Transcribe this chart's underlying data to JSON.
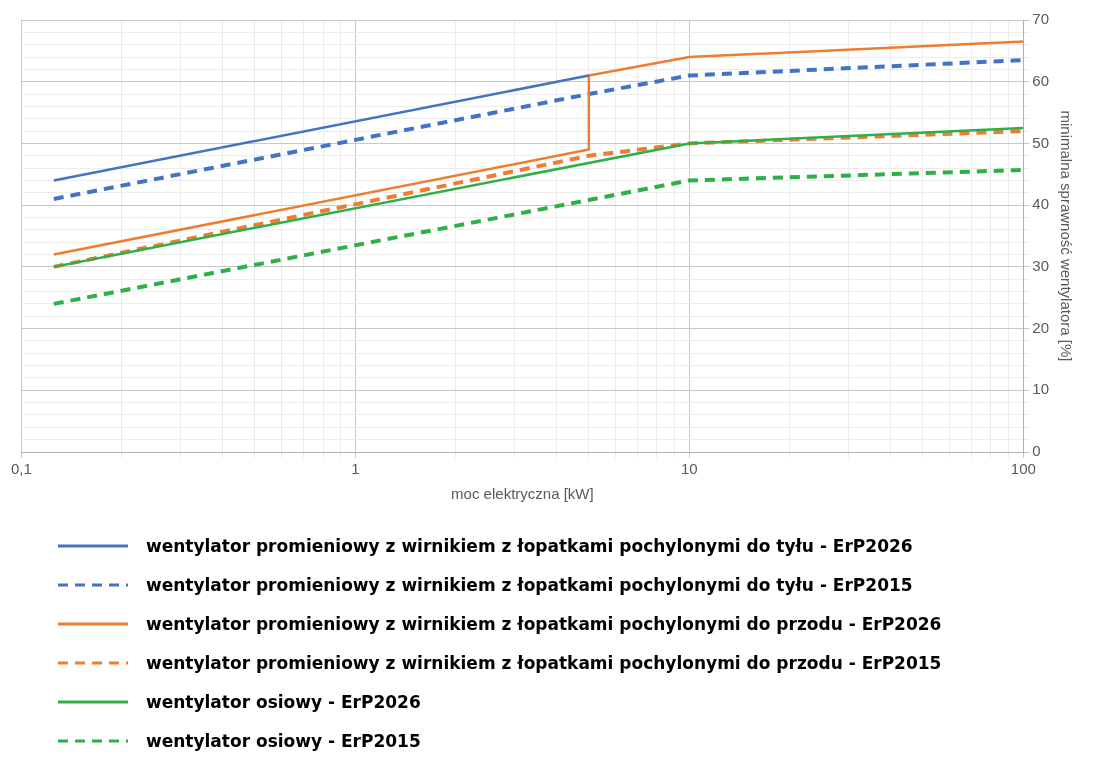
{
  "chart_data": {
    "type": "line",
    "xlabel": "moc elektryczna [kW]",
    "ylabel": "minimalna sprawność wentylatora [%]",
    "log": "x",
    "grid": true,
    "legend": "bottom",
    "marker": "none",
    "xlim": [
      0.1,
      100
    ],
    "ylim": [
      0,
      70
    ],
    "xticks": [
      {
        "value": 0.1,
        "label": "0,1"
      },
      {
        "value": 0.2,
        "label": null
      },
      {
        "value": 0.3,
        "label": null
      },
      {
        "value": 0.4,
        "label": null
      },
      {
        "value": 0.5,
        "label": null
      },
      {
        "value": 0.6,
        "label": null
      },
      {
        "value": 0.7,
        "label": null
      },
      {
        "value": 0.8,
        "label": null
      },
      {
        "value": 0.9,
        "label": null
      },
      1,
      {
        "value": 2,
        "label": null
      },
      {
        "value": 3,
        "label": null
      },
      {
        "value": 4,
        "label": null
      },
      {
        "value": 5,
        "label": null
      },
      {
        "value": 6,
        "label": null
      },
      {
        "value": 7,
        "label": null
      },
      {
        "value": 8,
        "label": null
      },
      {
        "value": 9,
        "label": null
      },
      10,
      {
        "value": 20,
        "label": null
      },
      {
        "value": 30,
        "label": null
      },
      {
        "value": 40,
        "label": null
      },
      {
        "value": 50,
        "label": null
      },
      {
        "value": 60,
        "label": null
      },
      {
        "value": 70,
        "label": null
      },
      {
        "value": 80,
        "label": null
      },
      {
        "value": 90,
        "label": null
      },
      100
    ],
    "yticks": [
      0,
      {
        "value": 2,
        "label": null
      },
      {
        "value": 4,
        "label": null
      },
      {
        "value": 6,
        "label": null
      },
      {
        "value": 8,
        "label": null
      },
      10,
      {
        "value": 12,
        "label": null
      },
      {
        "value": 14,
        "label": null
      },
      {
        "value": 16,
        "label": null
      },
      {
        "value": 18,
        "label": null
      },
      20,
      {
        "value": 22,
        "label": null
      },
      {
        "value": 24,
        "label": null
      },
      {
        "value": 26,
        "label": null
      },
      {
        "value": 28,
        "label": null
      },
      30,
      {
        "value": 32,
        "label": null
      },
      {
        "value": 34,
        "label": null
      },
      {
        "value": 36,
        "label": null
      },
      {
        "value": 38,
        "label": null
      },
      40,
      {
        "value": 42,
        "label": null
      },
      {
        "value": 44,
        "label": null
      },
      {
        "value": 46,
        "label": null
      },
      {
        "value": 48,
        "label": null
      },
      50,
      {
        "value": 52,
        "label": null
      },
      {
        "value": 54,
        "label": null
      },
      {
        "value": 56,
        "label": null
      },
      {
        "value": 58,
        "label": null
      },
      60,
      {
        "value": 62,
        "label": null
      },
      {
        "value": 64,
        "label": null
      },
      {
        "value": 66,
        "label": null
      },
      {
        "value": 68,
        "label": null
      },
      70
    ],
    "series": [
      {
        "name": "wentylator promieniowy z wirnikiem z łopatkami pochylonymi do tyłu - ErP2026",
        "color": "#4472c4",
        "line_style": "solid",
        "x": [
          0.125,
          5
        ],
        "values": [
          44,
          61
        ]
      },
      {
        "name": "wentylator promieniowy z wirnikiem z łopatkami pochylonymi do tyłu - ErP2015",
        "color": "#4472c4",
        "line_style": "dashed",
        "x": [
          0.125,
          5,
          10,
          100
        ],
        "values": [
          41,
          58,
          61,
          63.5
        ]
      },
      {
        "name": "wentylator promieniowy z wirnikiem z łopatkami pochylonymi do przodu - ErP2026",
        "color": "#ed7d31",
        "line_style": "solid",
        "x": [
          0.125,
          5,
          5,
          10,
          100
        ],
        "values": [
          32,
          49,
          61,
          64,
          66.5
        ]
      },
      {
        "name": "wentylator promieniowy z wirnikiem z łopatkami pochylonymi do przodu - ErP2015",
        "color": "#ed7d31",
        "line_style": "dashed",
        "x": [
          0.125,
          5,
          10,
          100
        ],
        "values": [
          30,
          48,
          50,
          52
        ]
      },
      {
        "name": "wentylator osiowy - ErP2026",
        "color": "#2eaf4a",
        "line_style": "solid",
        "x": [
          0.125,
          10,
          100
        ],
        "values": [
          30,
          50,
          52.5
        ]
      },
      {
        "name": "wentylator osiowy - ErP2015",
        "color": "#2eaf4a",
        "line_style": "dashed",
        "x": [
          0.125,
          10,
          100
        ],
        "values": [
          24,
          44,
          45.7
        ]
      }
    ]
  }
}
